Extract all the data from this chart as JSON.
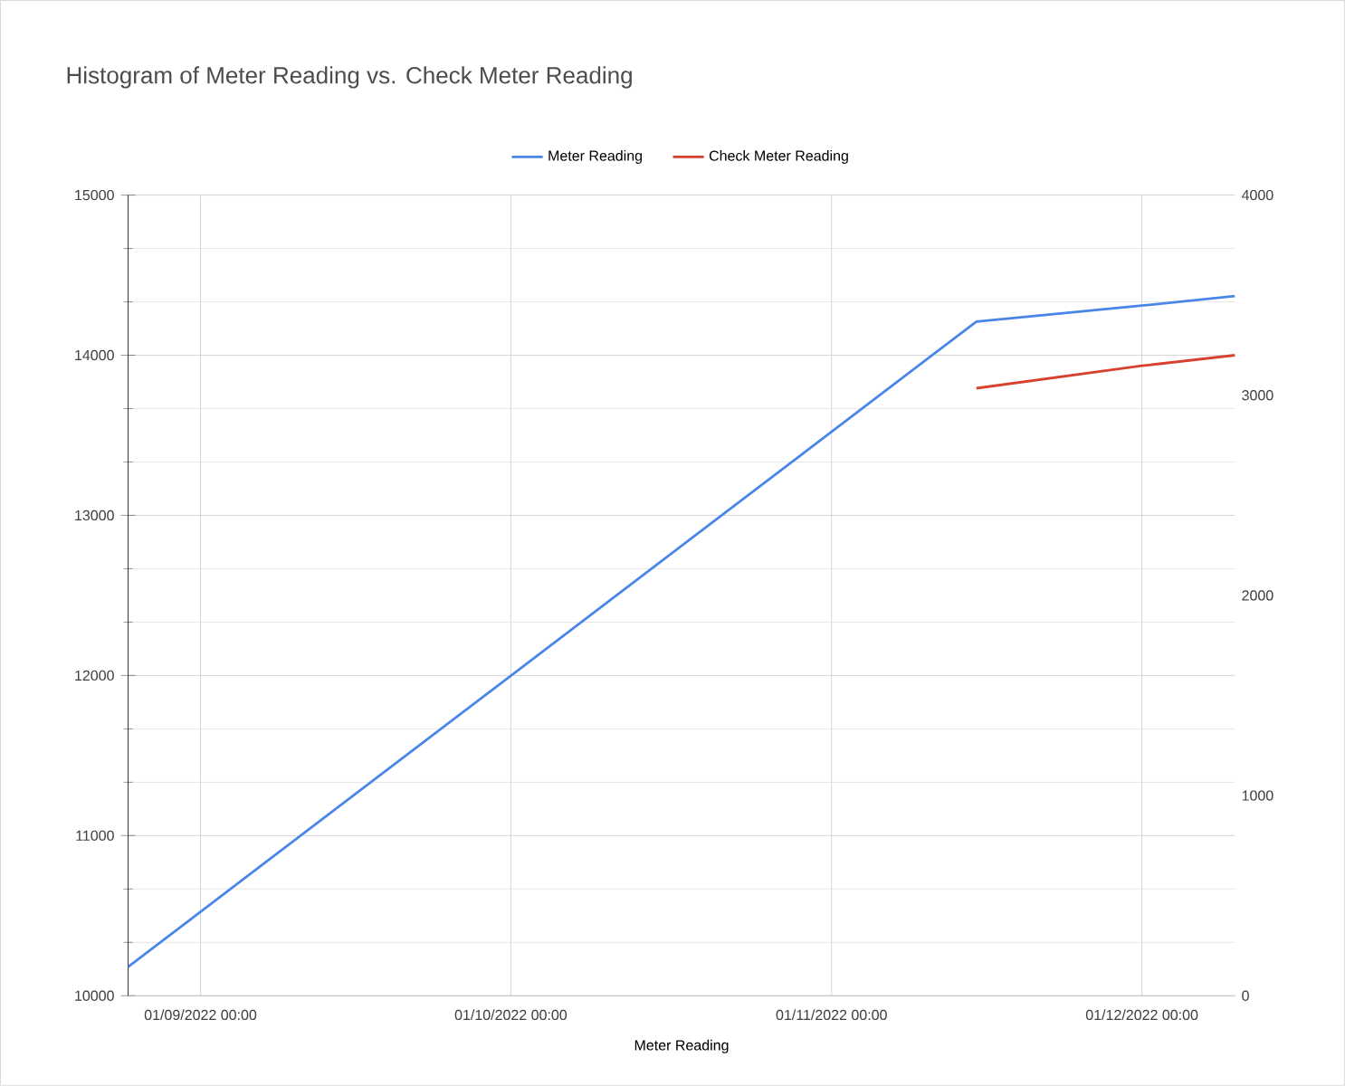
{
  "chart_data": {
    "type": "line",
    "title": "Histogram of Meter Reading vs. Check Meter Reading",
    "xlabel": "Meter Reading",
    "xlim": [
      "2022-08-25",
      "2022-12-10"
    ],
    "xticks": [
      {
        "value": "2022-09-01",
        "label": "01/09/2022 00:00"
      },
      {
        "value": "2022-10-01",
        "label": "01/10/2022 00:00"
      },
      {
        "value": "2022-11-01",
        "label": "01/11/2022 00:00"
      },
      {
        "value": "2022-12-01",
        "label": "01/12/2022 00:00"
      }
    ],
    "ylim": [
      10000,
      15000
    ],
    "yticks": [
      10000,
      11000,
      12000,
      13000,
      14000,
      15000
    ],
    "y2lim": [
      0,
      4000
    ],
    "y2ticks": [
      0,
      1000,
      2000,
      3000,
      4000
    ],
    "grid": true,
    "legend": "top",
    "series": [
      {
        "name": "Meter Reading",
        "color": "#4a86e8",
        "x": [
          "2022-08-25",
          "2022-11-15",
          "2022-12-01",
          "2022-12-10"
        ],
        "values": [
          10180,
          14210,
          14310,
          14370
        ]
      },
      {
        "name": "Check Meter Reading",
        "color": "#d9412f",
        "axis": "y2",
        "x": [
          "2022-11-15",
          "2022-12-01",
          "2022-12-10"
        ],
        "values": [
          3035,
          3147,
          3200
        ]
      }
    ]
  }
}
